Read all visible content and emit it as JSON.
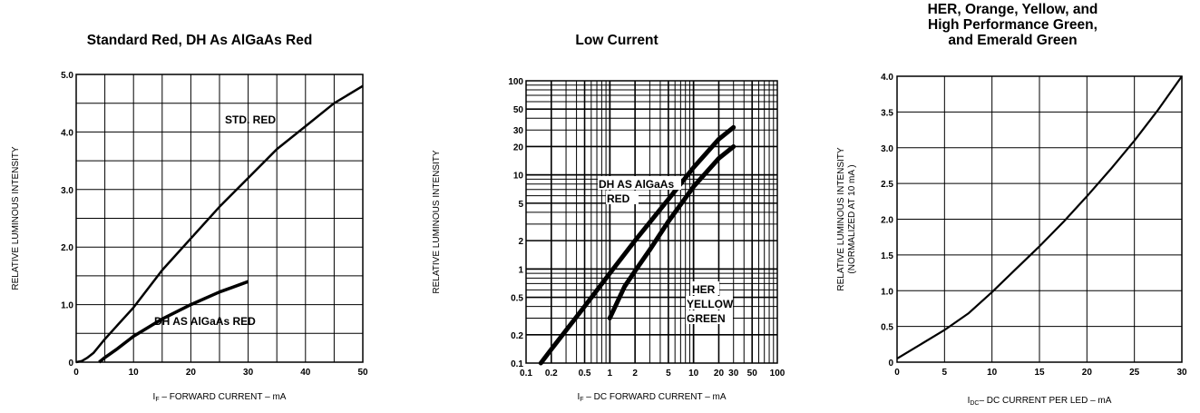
{
  "chart_data": [
    {
      "type": "line",
      "title": "Standard Red, DH As AlGaAs Red",
      "xlabel": "I",
      "xlabel_sub": "F",
      "xlabel_rest": " – FORWARD CURRENT – mA",
      "ylabel": "RELATIVE LUMINOUS INTENSITY",
      "xlim": [
        0,
        50
      ],
      "ylim": [
        0,
        5
      ],
      "x_ticks": [
        0,
        10,
        20,
        30,
        40,
        50
      ],
      "x_tick_labels": [
        "0",
        "10",
        "20",
        "30",
        "40",
        "50"
      ],
      "y_ticks": [
        0,
        1,
        2,
        3,
        4,
        5
      ],
      "y_tick_labels": [
        "0",
        "1.0",
        "2.0",
        "3.0",
        "4.0",
        "5.0"
      ],
      "grid": true,
      "series": [
        {
          "name": "STD. RED",
          "x": [
            0,
            1,
            2,
            3,
            5,
            10,
            15,
            20,
            25,
            30,
            35,
            40,
            45,
            50
          ],
          "y": [
            0,
            0.02,
            0.08,
            0.16,
            0.4,
            0.95,
            1.6,
            2.15,
            2.7,
            3.2,
            3.7,
            4.1,
            4.5,
            4.8
          ]
        },
        {
          "name": "DH AS AlGaAs RED",
          "x": [
            4,
            5,
            7,
            10,
            15,
            20,
            25,
            30
          ],
          "y": [
            0,
            0.08,
            0.22,
            0.45,
            0.75,
            1.0,
            1.22,
            1.4
          ]
        }
      ]
    },
    {
      "type": "line",
      "title": "Low Current",
      "xlabel": "I",
      "xlabel_sub": "F",
      "xlabel_rest": " – DC FORWARD CURRENT – mA",
      "ylabel": "RELATIVE LUMINOUS INTENSITY",
      "x_scale": "log",
      "y_scale": "log",
      "xlim": [
        0.1,
        100
      ],
      "ylim": [
        0.1,
        100
      ],
      "x_tick_values": [
        0.1,
        0.2,
        0.5,
        1,
        2,
        5,
        10,
        20,
        30,
        50,
        100
      ],
      "x_tick_labels": [
        "0.1",
        "0.2",
        "0.5",
        "1",
        "2",
        "5",
        "10",
        "20",
        "30",
        "50",
        "100"
      ],
      "y_tick_values": [
        0.1,
        0.2,
        0.5,
        1,
        2,
        5,
        10,
        20,
        30,
        50,
        100
      ],
      "y_tick_labels": [
        "0.1",
        "0.2",
        "0.5",
        "1",
        "2",
        "5",
        "10",
        "20",
        "30",
        "50",
        "100"
      ],
      "grid": true,
      "series": [
        {
          "name": "DH AS AlGaAs RED",
          "x": [
            0.15,
            0.2,
            0.5,
            1,
            2,
            5,
            10,
            20,
            30
          ],
          "y": [
            0.1,
            0.14,
            0.4,
            0.9,
            2.0,
            5.5,
            12,
            24,
            32
          ]
        },
        {
          "name": "HER YELLOW GREEN",
          "x": [
            1,
            1.5,
            2,
            3,
            5,
            10,
            20,
            30
          ],
          "y": [
            0.3,
            0.65,
            0.95,
            1.6,
            3.2,
            7.5,
            15,
            20
          ]
        }
      ],
      "annotations": [
        {
          "lines": [
            "DH AS AlGaAs",
            "RED"
          ]
        },
        {
          "lines": [
            "HER",
            "YELLOW",
            "GREEN"
          ]
        }
      ]
    },
    {
      "type": "line",
      "title_lines": [
        "HER, Orange, Yellow, and",
        "High Performance Green,",
        "and Emerald Green"
      ],
      "xlabel": "I",
      "xlabel_sub": "DC",
      "xlabel_rest": "– DC CURRENT PER LED – mA",
      "ylabel": "RELATIVE LUMINOUS INTENSITY",
      "ylabel2": "(NORMALIZED AT 10 mA )",
      "xlim": [
        0,
        30
      ],
      "ylim": [
        0,
        4
      ],
      "x_ticks": [
        0,
        5,
        10,
        15,
        20,
        25,
        30
      ],
      "x_tick_labels": [
        "0",
        "5",
        "10",
        "15",
        "20",
        "25",
        "30"
      ],
      "y_ticks": [
        0,
        0.5,
        1,
        1.5,
        2,
        2.5,
        3,
        3.5,
        4
      ],
      "y_tick_labels": [
        "0",
        "0.5",
        "1.0",
        "1.5",
        "2.0",
        "2.5",
        "3.0",
        "3.5",
        "4.0"
      ],
      "grid": true,
      "series": [
        {
          "x": [
            0,
            2.5,
            5,
            7.5,
            10,
            12.5,
            15,
            17.5,
            20,
            22.5,
            25,
            27.5,
            30
          ],
          "y": [
            0.05,
            0.25,
            0.45,
            0.68,
            0.98,
            1.3,
            1.62,
            1.96,
            2.32,
            2.7,
            3.1,
            3.53,
            4.0
          ]
        }
      ]
    }
  ]
}
